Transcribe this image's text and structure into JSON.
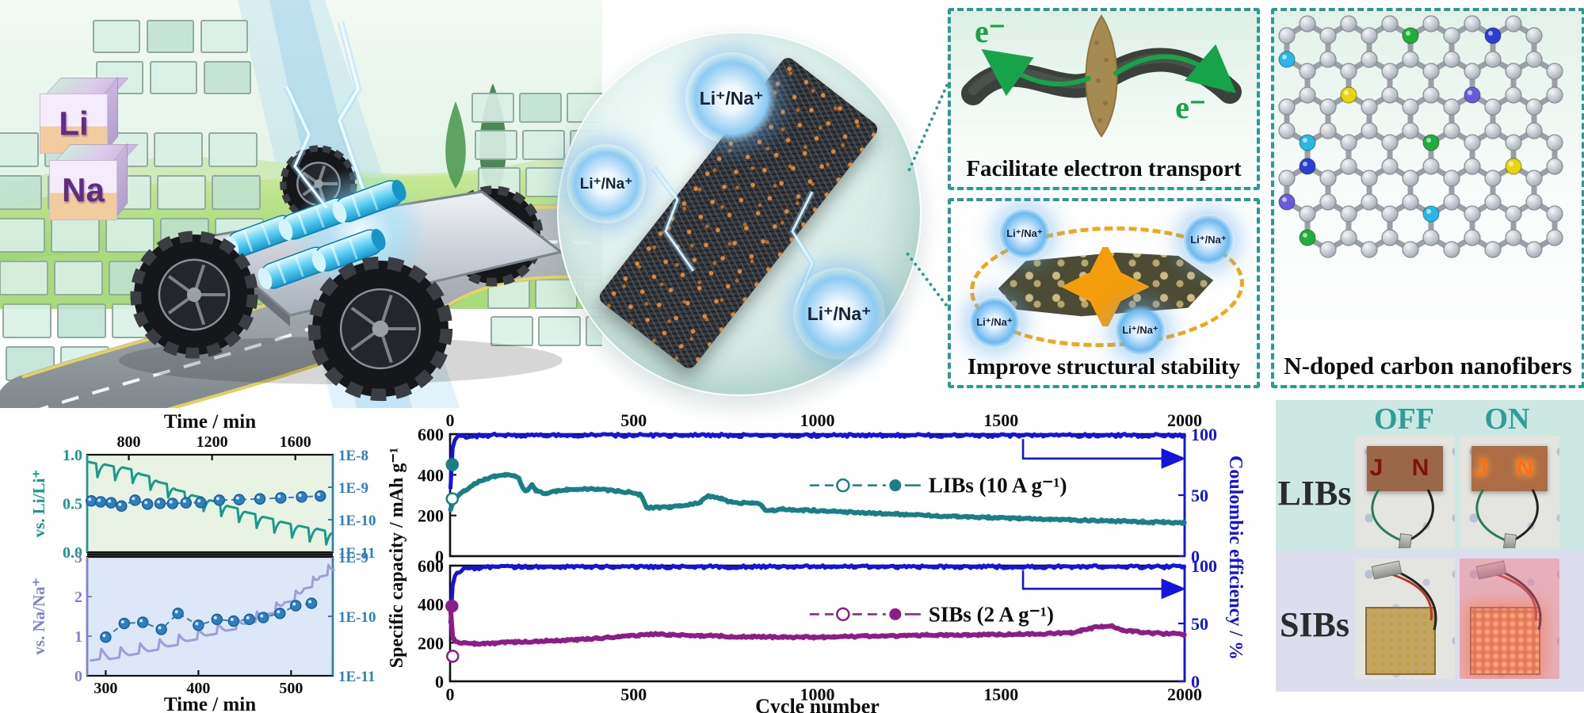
{
  "scene": {
    "cube_li": "Li",
    "cube_na": "Na"
  },
  "ions": {
    "label": "Li⁺/Na⁺"
  },
  "boxes": {
    "electron": {
      "caption": "Facilitate electron transport",
      "e_label": "e⁻"
    },
    "stability": {
      "caption": "Improve structural stability"
    },
    "ndoped": {
      "caption": "N-doped carbon nanofibers"
    }
  },
  "demo": {
    "off_label": "OFF",
    "on_label": "ON",
    "row_labels": [
      "LIBs",
      "SIBs"
    ],
    "led_letters": "J N"
  },
  "colors": {
    "accent_teal": "#2a9a92",
    "gitt_li_teal": "#17998c",
    "gitt_na_purple": "#9a9fd8",
    "gitt_label_na": "#7e82d1",
    "diffusion_dot_blue": "#2d7fc1",
    "efficiency_blue": "#1414dd",
    "libs_teal": "#197f86",
    "sibs_purple": "#8c1d88",
    "green_arrow": "#16a34a",
    "orange_dash": "#f0a818",
    "dopant_palette": [
      "#28b7e8",
      "#1fae3a",
      "#2b3fd6",
      "#e8d50e",
      "#6a5ae0"
    ]
  },
  "chart_data": [
    {
      "id": "gitt-li",
      "type": "line",
      "title": "Time / min",
      "x_range": [
        600,
        1780
      ],
      "x_ticks": [
        800,
        1200,
        1600
      ],
      "ylabel": "vs. Li/Li⁺",
      "y_range": [
        0,
        1
      ],
      "y_ticks": [
        "1.0",
        "0.5",
        "0.0"
      ],
      "right_ticks": [
        "1E-8",
        "1E-9",
        "1E-10",
        "1E-11"
      ],
      "right_log_range": [
        -8,
        -11
      ],
      "background": "#e9f3e3",
      "voltage_pulses": [
        [
          600,
          0.93
        ],
        [
          685,
          0.9
        ],
        [
          770,
          0.87
        ],
        [
          855,
          0.8
        ],
        [
          940,
          0.72
        ],
        [
          1025,
          0.64
        ],
        [
          1110,
          0.58
        ],
        [
          1195,
          0.53
        ],
        [
          1280,
          0.47
        ],
        [
          1365,
          0.41
        ],
        [
          1450,
          0.36
        ],
        [
          1535,
          0.31
        ],
        [
          1620,
          0.27
        ],
        [
          1705,
          0.24
        ]
      ],
      "pulse_depth": 0.16,
      "trend": "down",
      "diffusion_log10": [
        [
          620,
          -9.42
        ],
        [
          665,
          -9.45
        ],
        [
          715,
          -9.48
        ],
        [
          765,
          -9.58
        ],
        [
          830,
          -9.4
        ],
        [
          890,
          -9.52
        ],
        [
          950,
          -9.5
        ],
        [
          1010,
          -9.5
        ],
        [
          1075,
          -9.48
        ],
        [
          1145,
          -9.47
        ],
        [
          1235,
          -9.4
        ],
        [
          1330,
          -9.38
        ],
        [
          1430,
          -9.36
        ],
        [
          1530,
          -9.33
        ],
        [
          1630,
          -9.3
        ],
        [
          1720,
          -9.27
        ]
      ]
    },
    {
      "id": "gitt-na",
      "type": "line",
      "xlabel": "Time / min",
      "x_range": [
        280,
        545
      ],
      "x_ticks": [
        300,
        400,
        500
      ],
      "ylabel": "vs. Na/Na⁺",
      "y_range": [
        0,
        3
      ],
      "y_ticks": [
        "3",
        "2",
        "1",
        "0"
      ],
      "right_ticks": [
        "1E-9",
        "1E-10",
        "1E-11"
      ],
      "right_log_range": [
        -9,
        -11
      ],
      "background": "#dce8f7",
      "voltage_pulses": [
        [
          283,
          0.38
        ],
        [
          304,
          0.42
        ],
        [
          325,
          0.52
        ],
        [
          346,
          0.62
        ],
        [
          367,
          0.74
        ],
        [
          388,
          0.88
        ],
        [
          409,
          1.02
        ],
        [
          430,
          1.14
        ],
        [
          451,
          1.32
        ],
        [
          472,
          1.55
        ],
        [
          493,
          1.85
        ],
        [
          514,
          2.2
        ],
        [
          531,
          2.5
        ]
      ],
      "pulse_rise": 0.3,
      "trend": "up",
      "diffusion_log10": [
        [
          300,
          -10.35
        ],
        [
          320,
          -10.12
        ],
        [
          340,
          -10.1
        ],
        [
          360,
          -10.22
        ],
        [
          378,
          -9.95
        ],
        [
          400,
          -10.15
        ],
        [
          420,
          -10.05
        ],
        [
          438,
          -10.08
        ],
        [
          455,
          -10.05
        ],
        [
          470,
          -10.02
        ],
        [
          488,
          -9.95
        ],
        [
          505,
          -9.82
        ],
        [
          522,
          -9.78
        ]
      ]
    },
    {
      "id": "cycling",
      "type": "scatter-line",
      "xlabel": "Cycle number",
      "x_range": [
        0,
        2000
      ],
      "x_ticks": [
        0,
        500,
        1000,
        1500,
        2000
      ],
      "top_ticks": [
        0,
        500,
        1000,
        1500,
        2000
      ],
      "ylabel_left": "Specific capacity / mAh g⁻¹",
      "ylabel_right": "Coulombic efficiency / %",
      "panels": [
        {
          "name": "LIBs",
          "legend": "LIBs (10 A g⁻¹)",
          "color": "#197f86",
          "y_range": [
            0,
            600
          ],
          "y_ticks": [
            0,
            200,
            400,
            600
          ],
          "right_range": [
            0,
            100
          ],
          "right_ticks": [
            0,
            50,
            100
          ],
          "capacity": [
            [
              1,
              225
            ],
            [
              8,
              262
            ],
            [
              30,
              310
            ],
            [
              70,
              360
            ],
            [
              110,
              388
            ],
            [
              150,
              400
            ],
            [
              185,
              392
            ],
            [
              200,
              330
            ],
            [
              210,
              318
            ],
            [
              222,
              352
            ],
            [
              235,
              322
            ],
            [
              255,
              308
            ],
            [
              300,
              322
            ],
            [
              350,
              332
            ],
            [
              420,
              326
            ],
            [
              500,
              312
            ],
            [
              520,
              300
            ],
            [
              535,
              238
            ],
            [
              600,
              242
            ],
            [
              650,
              252
            ],
            [
              680,
              262
            ],
            [
              700,
              295
            ],
            [
              730,
              288
            ],
            [
              760,
              268
            ],
            [
              800,
              262
            ],
            [
              845,
              258
            ],
            [
              860,
              222
            ],
            [
              900,
              230
            ],
            [
              950,
              228
            ],
            [
              1000,
              224
            ],
            [
              1100,
              215
            ],
            [
              1200,
              208
            ],
            [
              1300,
              200
            ],
            [
              1400,
              194
            ],
            [
              1500,
              188
            ],
            [
              1600,
              182
            ],
            [
              1700,
              178
            ],
            [
              1800,
              173
            ],
            [
              1900,
              168
            ],
            [
              2000,
              164
            ]
          ],
          "efficiency": [
            [
              1,
              55
            ],
            [
              4,
              82
            ],
            [
              10,
              94
            ],
            [
              25,
              98
            ],
            [
              120,
              99
            ],
            [
              2000,
              99
            ]
          ],
          "start_markers": [
            {
              "x": 6,
              "y": 450,
              "filled": true
            },
            {
              "x": 6,
              "y": 282,
              "filled": false
            }
          ]
        },
        {
          "name": "SIBs",
          "legend": "SIBs (2 A g⁻¹)",
          "color": "#8c1d88",
          "y_range": [
            0,
            600
          ],
          "y_ticks": [
            0,
            200,
            400,
            600
          ],
          "right_range": [
            0,
            100
          ],
          "right_ticks": [
            0,
            50,
            100
          ],
          "capacity": [
            [
              1,
              388
            ],
            [
              3,
              300
            ],
            [
              6,
              238
            ],
            [
              12,
              210
            ],
            [
              30,
              200
            ],
            [
              60,
              194
            ],
            [
              100,
              196
            ],
            [
              150,
              202
            ],
            [
              220,
              206
            ],
            [
              300,
              212
            ],
            [
              380,
              220
            ],
            [
              450,
              230
            ],
            [
              520,
              240
            ],
            [
              560,
              246
            ],
            [
              620,
              240
            ],
            [
              700,
              236
            ],
            [
              800,
              231
            ],
            [
              900,
              230
            ],
            [
              1000,
              229
            ],
            [
              1100,
              233
            ],
            [
              1200,
              236
            ],
            [
              1300,
              239
            ],
            [
              1400,
              241
            ],
            [
              1500,
              243
            ],
            [
              1620,
              247
            ],
            [
              1700,
              252
            ],
            [
              1730,
              270
            ],
            [
              1770,
              284
            ],
            [
              1800,
              286
            ],
            [
              1830,
              265
            ],
            [
              1900,
              252
            ],
            [
              2000,
              243
            ]
          ],
          "efficiency": [
            [
              1,
              52
            ],
            [
              5,
              80
            ],
            [
              14,
              93
            ],
            [
              35,
              97
            ],
            [
              120,
              99
            ],
            [
              2000,
              99
            ]
          ],
          "start_markers": [
            {
              "x": 7,
              "y": 130,
              "filled": false
            },
            {
              "x": 5,
              "y": 390,
              "filled": true
            }
          ]
        }
      ]
    }
  ]
}
